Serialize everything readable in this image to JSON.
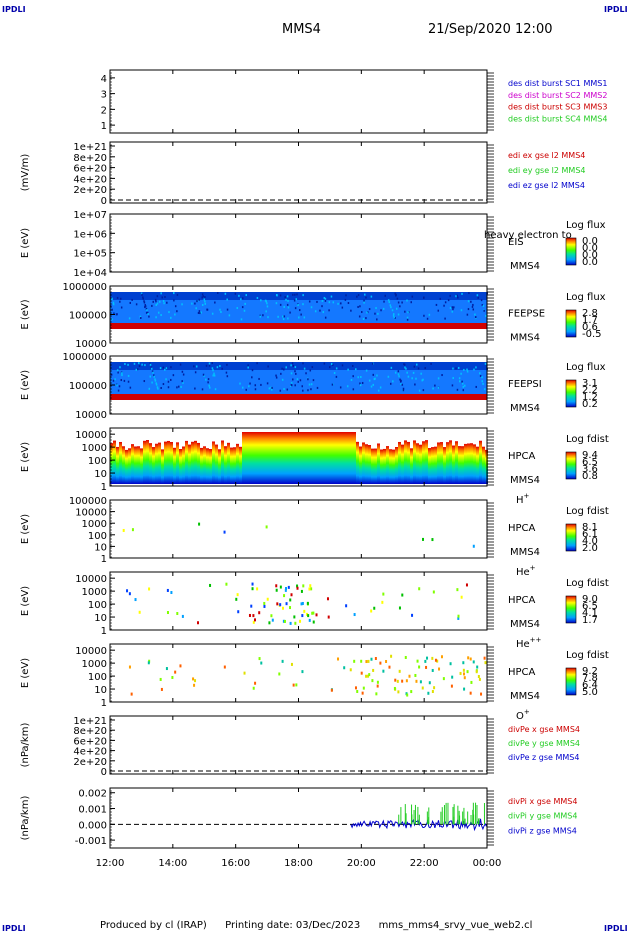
{
  "header": {
    "corner_left_top": "IPDLI",
    "corner_right_top": "IPDLI",
    "corner_left_bottom": "IPDLI",
    "corner_right_bottom": "IPDLI",
    "spacecraft": "MMS4",
    "datetime": "21/Sep/2020 12:00"
  },
  "footer": {
    "produced_by": "Produced by cl (IRAP)",
    "printing_date": "Printing date: 03/Dec/2023",
    "script_name": "mms_mms4_srvy_vue_web2.cl"
  },
  "colors": {
    "red": "#cc0000",
    "green": "#22cc22",
    "blue": "#0000cc",
    "magenta": "#cc00cc"
  },
  "chart_data": [
    {
      "type": "line",
      "ylabel": "",
      "yticks": [
        "4",
        "3",
        "2",
        "1"
      ],
      "ylim": [
        0.5,
        4.5
      ],
      "legend": [
        {
          "text": "des dist burst SC1 MMS1",
          "color": "#0000cc"
        },
        {
          "text": "des dist burst SC2 MMS2",
          "color": "#cc00cc"
        },
        {
          "text": "des dist burst SC3 MMS3",
          "color": "#cc0000"
        },
        {
          "text": "des dist burst SC4 MMS4",
          "color": "#22cc22"
        }
      ]
    },
    {
      "type": "line",
      "ylabel": "(mV/m)",
      "yticks": [
        "1e+21",
        "8e+20",
        "6e+20",
        "4e+20",
        "2e+20",
        "0"
      ],
      "ylim": [
        0,
        1e+21
      ],
      "dashed_zero": true,
      "legend": [
        {
          "text": "edi ex gse l2 MMS4",
          "color": "#cc0000"
        },
        {
          "text": "edi ey gse l2 MMS4",
          "color": "#22cc22"
        },
        {
          "text": "edi ez gse l2 MMS4",
          "color": "#0000cc"
        }
      ]
    },
    {
      "type": "heatmap",
      "ylabel": "E (eV)",
      "yticks": [
        "1e+07",
        "1e+06",
        "1e+05",
        "1e+04"
      ],
      "ylim": [
        10000,
        10000000
      ],
      "yscale": "log",
      "instrument": "EIS",
      "overlay_text": "heavy electron to",
      "sc": "MMS4",
      "colorbar_title": "Log flux",
      "colorbar_ticks": [
        "0.0",
        "0.0",
        "0.0",
        "0.0"
      ]
    },
    {
      "type": "heatmap",
      "ylabel": "E (eV)",
      "yticks": [
        "1000000",
        "100000",
        "10000"
      ],
      "ylim": [
        10000,
        1000000
      ],
      "yscale": "log",
      "instrument": "FEEPSE",
      "sc": "MMS4",
      "colorbar_title": "Log flux",
      "colorbar_ticks": [
        "2.8",
        "1.7",
        "0.6",
        "-0.5"
      ]
    },
    {
      "type": "heatmap",
      "ylabel": "E (eV)",
      "yticks": [
        "1000000",
        "100000",
        "10000"
      ],
      "ylim": [
        10000,
        1000000
      ],
      "yscale": "log",
      "instrument": "FEEPSI",
      "sc": "MMS4",
      "colorbar_title": "Log flux",
      "colorbar_ticks": [
        "3.1",
        "2.2",
        "1.2",
        "0.2"
      ]
    },
    {
      "type": "heatmap",
      "ylabel": "E (eV)",
      "yticks": [
        "10000",
        "1000",
        "100",
        "10",
        "1"
      ],
      "ylim": [
        1,
        30000
      ],
      "yscale": "log",
      "instrument": "HPCA",
      "sc": "MMS4",
      "species": "H",
      "charge": "+",
      "colorbar_title": "Log fdist",
      "colorbar_ticks": [
        "9.4",
        "6.5",
        "3.6",
        "0.8"
      ]
    },
    {
      "type": "heatmap",
      "ylabel": "E (eV)",
      "yticks": [
        "100000",
        "10000",
        "1000",
        "100",
        "10",
        "1"
      ],
      "ylim": [
        1,
        100000
      ],
      "yscale": "log",
      "instrument": "HPCA",
      "sc": "MMS4",
      "species": "He",
      "charge": "+",
      "colorbar_title": "Log fdist",
      "colorbar_ticks": [
        "8.1",
        "6.1",
        "4.0",
        "2.0"
      ]
    },
    {
      "type": "heatmap",
      "ylabel": "E (eV)",
      "yticks": [
        "10000",
        "1000",
        "100",
        "10",
        "1"
      ],
      "ylim": [
        1,
        30000
      ],
      "yscale": "log",
      "instrument": "HPCA",
      "sc": "MMS4",
      "species": "He",
      "charge": "++",
      "colorbar_title": "Log fdist",
      "colorbar_ticks": [
        "9.0",
        "6.5",
        "4.1",
        "1.7"
      ]
    },
    {
      "type": "heatmap",
      "ylabel": "E (eV)",
      "yticks": [
        "10000",
        "1000",
        "100",
        "10",
        "1"
      ],
      "ylim": [
        1,
        30000
      ],
      "yscale": "log",
      "instrument": "HPCA",
      "sc": "MMS4",
      "species": "O",
      "charge": "+",
      "colorbar_title": "Log fdist",
      "colorbar_ticks": [
        "9.2",
        "7.8",
        "6.4",
        "5.0"
      ]
    },
    {
      "type": "line",
      "ylabel": "(nPa/km)",
      "yticks": [
        "1e+21",
        "8e+20",
        "6e+20",
        "4e+20",
        "2e+20",
        "0"
      ],
      "ylim": [
        0,
        1e+21
      ],
      "dashed_zero": true,
      "legend": [
        {
          "text": "divPe x gse MMS4",
          "color": "#cc0000"
        },
        {
          "text": "divPe y gse MMS4",
          "color": "#22cc22"
        },
        {
          "text": "divPe z gse MMS4",
          "color": "#0000cc"
        }
      ]
    },
    {
      "type": "line",
      "ylabel": "(nPa/km)",
      "yticks": [
        "0.002",
        "0.001",
        "0.000",
        "-0.001"
      ],
      "ylim": [
        -0.0015,
        0.0023
      ],
      "dashed_zero": true,
      "legend": [
        {
          "text": "divPi x gse MMS4",
          "color": "#cc0000"
        },
        {
          "text": "divPi y gse MMS4",
          "color": "#22cc22"
        },
        {
          "text": "divPi z gse MMS4",
          "color": "#0000cc"
        }
      ],
      "data_start": "19:40"
    }
  ],
  "xaxis": {
    "ticks": [
      "12:00",
      "14:00",
      "16:00",
      "18:00",
      "20:00",
      "22:00",
      "00:00"
    ],
    "range_hours": [
      12,
      24
    ]
  }
}
